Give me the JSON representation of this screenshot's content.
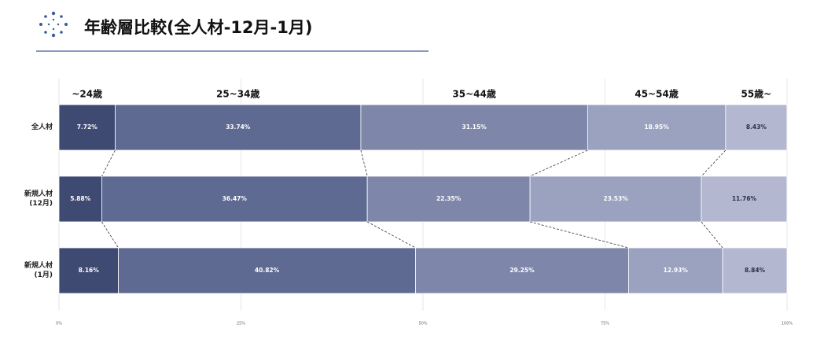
{
  "chart_data": {
    "type": "stacked_bar_horizontal",
    "title": "年齢層比較(全人材-12月-1月)",
    "categories": [
      "全人材",
      "新規人材\n(12月)",
      "新規人材\n(1月)"
    ],
    "series": [
      {
        "name": "~24歳",
        "color": "#3f4a72",
        "values": [
          7.72,
          5.88,
          8.16
        ],
        "value_labels": [
          "7.72%",
          "5.88%",
          "8.16%"
        ]
      },
      {
        "name": "25~34歳",
        "color": "#5f6a92",
        "values": [
          33.74,
          36.47,
          40.82
        ],
        "value_labels": [
          "33.74%",
          "36.47%",
          "40.82%"
        ]
      },
      {
        "name": "35~44歳",
        "color": "#7e87aa",
        "values": [
          31.15,
          22.35,
          29.25
        ],
        "value_labels": [
          "31.15%",
          "22.35%",
          "29.25%"
        ]
      },
      {
        "name": "45~54歳",
        "color": "#9aa2c0",
        "values": [
          18.95,
          23.53,
          12.93
        ],
        "value_labels": [
          "18.95%",
          "23.53%",
          "12.93%"
        ]
      },
      {
        "name": "55歳~",
        "color": "#b3b8d0",
        "values": [
          8.43,
          11.76,
          8.84
        ],
        "value_labels": [
          "8.43%",
          "11.76%",
          "8.84%"
        ]
      }
    ],
    "xlim": [
      0,
      100
    ],
    "xticks": [
      {
        "value": 0,
        "label": "0%"
      },
      {
        "value": 25,
        "label": "25%"
      },
      {
        "value": 50,
        "label": "50%"
      },
      {
        "value": 75,
        "label": "75%"
      },
      {
        "value": 100,
        "label": "100%"
      }
    ],
    "grid": true
  }
}
